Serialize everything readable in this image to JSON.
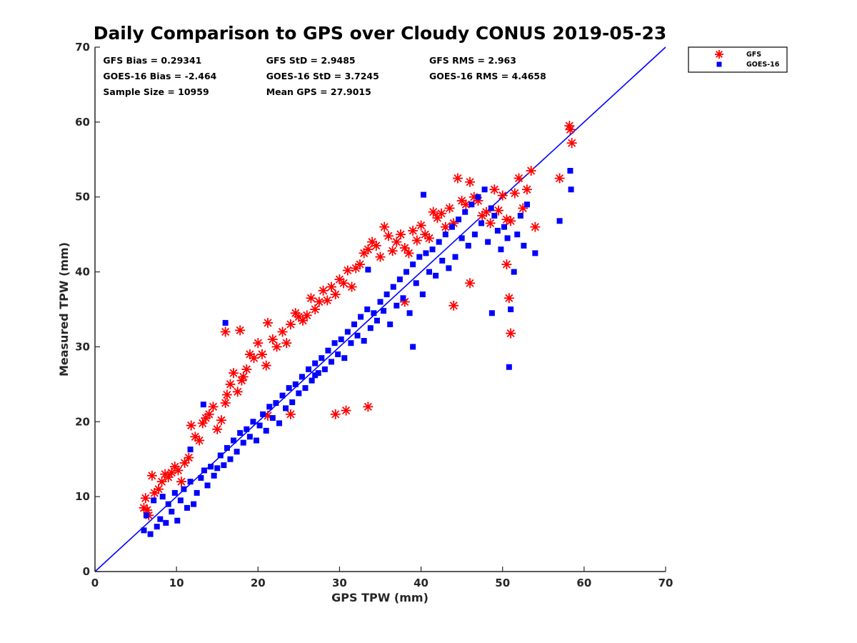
{
  "chart_data": {
    "type": "scatter",
    "title": "Daily Comparison to GPS over Cloudy CONUS 2019-05-23",
    "xlabel": "GPS TPW (mm)",
    "ylabel": "Measured TPW (mm)",
    "xlim": [
      0,
      70
    ],
    "ylim": [
      0,
      70
    ],
    "xticks": [
      "0",
      "10",
      "20",
      "30",
      "40",
      "50",
      "60",
      "70"
    ],
    "yticks": [
      "0",
      "10",
      "20",
      "30",
      "40",
      "50",
      "60",
      "70"
    ],
    "grid": false,
    "legend_position": "outside top-right",
    "reference_line": {
      "name": "1:1 line",
      "color": "#0000ff",
      "x": [
        0,
        70
      ],
      "y": [
        0,
        70
      ]
    },
    "annotations": [
      {
        "text": "GFS Bias = 0.29341",
        "x": 1,
        "y": 68.2
      },
      {
        "text": "GFS StD = 2.9485",
        "x": 21,
        "y": 68.2
      },
      {
        "text": "GFS RMS = 2.963",
        "x": 41,
        "y": 68.2
      },
      {
        "text": "GOES-16 Bias = -2.464",
        "x": 1,
        "y": 66.1
      },
      {
        "text": "GOES-16 StD = 3.7245",
        "x": 21,
        "y": 66.1
      },
      {
        "text": "GOES-16 RMS = 4.4658",
        "x": 41,
        "y": 66.1
      },
      {
        "text": "Sample Size = 10959",
        "x": 1,
        "y": 64.0
      },
      {
        "text": "Mean GPS = 27.9015",
        "x": 21,
        "y": 64.0
      }
    ],
    "statistics": {
      "gfs_bias": 0.29341,
      "gfs_std": 2.9485,
      "gfs_rms": 2.963,
      "goes16_bias": -2.464,
      "goes16_std": 3.7245,
      "goes16_rms": 4.4658,
      "sample_size": 10959,
      "mean_gps": 27.9015
    },
    "series": [
      {
        "name": "GFS",
        "marker": "asterisk",
        "color": "#ff0000",
        "x": [
          6.0,
          6.2,
          6.4,
          6.6,
          7.0,
          7.3,
          7.8,
          8.2,
          8.6,
          9.0,
          9.4,
          9.8,
          10.2,
          10.6,
          11.0,
          11.5,
          11.8,
          12.3,
          12.8,
          13.2,
          13.6,
          14.0,
          14.5,
          15.0,
          15.5,
          16.0,
          16.2,
          16.6,
          17.0,
          17.5,
          18.0,
          18.2,
          18.6,
          19.0,
          19.5,
          20.0,
          20.5,
          21.0,
          21.2,
          21.8,
          22.3,
          23.0,
          23.5,
          24.0,
          24.6,
          25.0,
          25.5,
          26.0,
          26.5,
          27.0,
          27.5,
          28.0,
          28.5,
          29.0,
          29.5,
          30.0,
          30.5,
          31.0,
          31.5,
          32.0,
          32.5,
          33.0,
          33.5,
          34.0,
          34.5,
          35.0,
          35.5,
          36.0,
          36.5,
          37.0,
          37.5,
          38.0,
          38.5,
          39.0,
          39.5,
          40.0,
          40.5,
          41.0,
          41.5,
          42.0,
          42.5,
          43.0,
          43.5,
          44.0,
          44.5,
          45.0,
          45.5,
          46.0,
          46.5,
          47.0,
          47.5,
          48.0,
          48.5,
          49.0,
          49.5,
          50.0,
          50.5,
          51.0,
          51.5,
          52.0,
          52.5,
          53.0,
          53.5,
          54.0,
          57.0,
          58.2,
          58.5,
          58.3,
          16.0,
          17.8,
          21.2,
          24.0,
          29.5,
          30.8,
          33.5,
          38.0,
          44.0,
          46.0,
          50.5,
          50.8,
          51.0
        ],
        "y": [
          8.5,
          9.8,
          8.2,
          7.5,
          12.8,
          10.5,
          11.0,
          12.0,
          13.0,
          12.6,
          13.2,
          14.0,
          13.5,
          12.0,
          14.5,
          15.2,
          19.5,
          18.0,
          17.5,
          19.8,
          20.5,
          21.0,
          22.0,
          19.0,
          20.2,
          22.5,
          23.6,
          25.0,
          26.5,
          24.0,
          25.5,
          26.0,
          27.0,
          29.0,
          28.5,
          30.5,
          29.0,
          27.5,
          33.2,
          31.0,
          30.0,
          32.0,
          30.5,
          33.0,
          34.5,
          34.0,
          33.5,
          34.2,
          36.5,
          35.0,
          36.0,
          37.5,
          36.2,
          38.0,
          37.0,
          39.0,
          38.5,
          40.2,
          38.0,
          40.5,
          41.0,
          42.5,
          43.0,
          44.0,
          43.5,
          42.0,
          46.0,
          44.8,
          42.8,
          44.0,
          45.0,
          43.2,
          42.5,
          45.5,
          44.2,
          46.2,
          45.0,
          44.5,
          48.0,
          47.2,
          47.8,
          46.0,
          48.5,
          46.5,
          52.5,
          49.5,
          49.0,
          52.0,
          50.0,
          49.5,
          47.5,
          48.0,
          46.5,
          51.0,
          48.2,
          50.2,
          47.0,
          46.8,
          50.5,
          52.5,
          48.5,
          51.0,
          53.5,
          46.0,
          52.5,
          59.5,
          57.2,
          59.0,
          32.0,
          32.2,
          20.8,
          21.0,
          21.0,
          21.5,
          22.0,
          36.0,
          35.5,
          38.5,
          41.0,
          36.5,
          31.8
        ]
      },
      {
        "name": "GOES-16",
        "marker": "square",
        "color": "#0000ff",
        "x": [
          6.0,
          6.3,
          6.8,
          7.2,
          7.6,
          8.0,
          8.3,
          8.7,
          9.0,
          9.4,
          9.8,
          10.1,
          10.5,
          10.9,
          11.3,
          11.7,
          12.1,
          12.5,
          13.0,
          13.4,
          13.8,
          14.2,
          14.6,
          15.0,
          15.4,
          15.8,
          16.2,
          16.6,
          17.0,
          17.4,
          17.8,
          18.2,
          18.6,
          19.0,
          19.4,
          19.8,
          20.2,
          20.6,
          21.0,
          21.4,
          21.8,
          22.2,
          22.6,
          23.0,
          23.4,
          23.8,
          24.2,
          24.6,
          25.0,
          25.4,
          25.8,
          26.2,
          26.6,
          27.0,
          27.4,
          27.8,
          28.2,
          28.6,
          29.0,
          29.4,
          29.8,
          30.2,
          30.6,
          31.0,
          31.4,
          31.8,
          32.2,
          32.6,
          33.0,
          33.4,
          33.8,
          34.2,
          34.6,
          35.0,
          35.4,
          35.8,
          36.2,
          36.6,
          37.0,
          37.4,
          37.8,
          38.2,
          38.6,
          39.0,
          39.4,
          39.8,
          40.2,
          40.6,
          41.0,
          41.4,
          41.8,
          42.2,
          42.6,
          43.0,
          43.4,
          43.8,
          44.2,
          44.6,
          45.0,
          45.4,
          45.8,
          46.2,
          46.6,
          47.0,
          47.4,
          47.8,
          48.2,
          48.6,
          49.0,
          49.4,
          49.8,
          50.2,
          50.6,
          51.0,
          51.4,
          51.8,
          52.2,
          52.6,
          53.0,
          54.0,
          57.0,
          58.3,
          58.4,
          16.0,
          13.3,
          11.7,
          27.0,
          33.5,
          39.0,
          40.3,
          48.7,
          50.8
        ],
        "y": [
          5.5,
          7.5,
          5.0,
          9.5,
          6.0,
          7.0,
          10.0,
          6.5,
          9.0,
          8.0,
          10.5,
          6.8,
          9.5,
          11.0,
          8.5,
          12.0,
          9.0,
          10.5,
          12.5,
          13.5,
          11.5,
          14.0,
          12.8,
          13.8,
          15.5,
          14.2,
          16.5,
          15.0,
          17.5,
          16.0,
          18.5,
          17.2,
          19.0,
          18.0,
          20.0,
          17.5,
          19.5,
          21.0,
          18.8,
          22.0,
          20.5,
          22.5,
          19.8,
          23.5,
          21.8,
          24.5,
          22.6,
          25.0,
          23.8,
          26.0,
          24.5,
          27.0,
          25.5,
          27.8,
          26.5,
          28.5,
          27.0,
          29.5,
          28.0,
          30.5,
          29.0,
          31.0,
          28.5,
          32.0,
          30.5,
          33.0,
          31.5,
          34.0,
          30.8,
          35.0,
          32.5,
          34.5,
          33.5,
          36.0,
          34.8,
          37.0,
          33.0,
          38.0,
          35.5,
          39.0,
          36.5,
          40.0,
          34.5,
          41.0,
          38.5,
          42.0,
          37.0,
          42.5,
          40.0,
          43.0,
          39.5,
          44.0,
          41.5,
          45.0,
          40.5,
          46.0,
          42.0,
          47.0,
          44.5,
          48.0,
          43.5,
          49.0,
          45.0,
          50.0,
          46.5,
          51.0,
          44.0,
          48.5,
          47.5,
          45.5,
          43.0,
          46.0,
          44.5,
          35.0,
          40.0,
          45.0,
          47.5,
          43.5,
          49.0,
          42.5,
          46.8,
          53.5,
          51.0,
          33.2,
          22.3,
          16.3,
          26.2,
          40.3,
          30.0,
          50.3,
          34.5,
          27.3
        ]
      }
    ]
  }
}
